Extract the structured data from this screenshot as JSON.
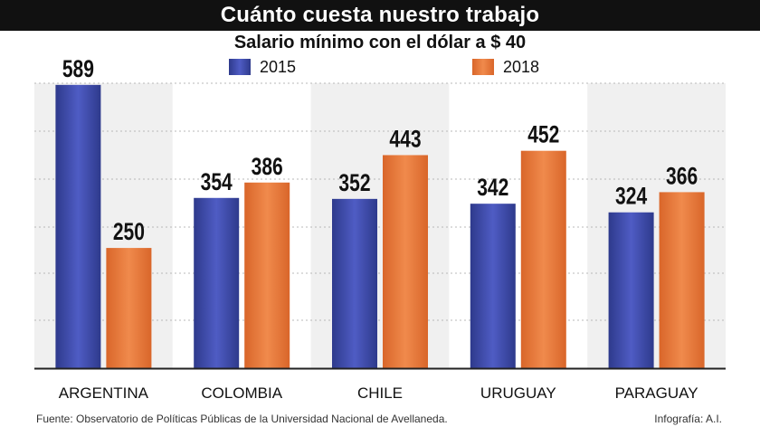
{
  "header": {
    "title": "Cuánto cuesta nuestro trabajo",
    "subtitle": "Salario mínimo con el dólar a $ 40"
  },
  "legend": {
    "items": [
      {
        "label": "2015"
      },
      {
        "label": "2018"
      }
    ]
  },
  "colors": {
    "series_2015": "#2e3a8c",
    "series_2015_light": "#4f5cc4",
    "series_2018": "#d9662a",
    "series_2018_light": "#f08a4c",
    "band_shaded": "#f0f0f0",
    "band_plain": "#ffffff",
    "grid": "#b9b9b9"
  },
  "chart_data": {
    "type": "bar",
    "title": "Cuánto cuesta nuestro trabajo",
    "subtitle": "Salario mínimo con el dólar a $ 40",
    "categories": [
      "ARGENTINA",
      "COLOMBIA",
      "CHILE",
      "URUGUAY",
      "PARAGUAY"
    ],
    "series": [
      {
        "name": "2015",
        "values": [
          589,
          354,
          352,
          342,
          324
        ]
      },
      {
        "name": "2018",
        "values": [
          250,
          386,
          443,
          452,
          366
        ]
      }
    ],
    "xlabel": "",
    "ylabel": "",
    "ylim": [
      0,
      600
    ],
    "grid": true,
    "legend_position": "top"
  },
  "footer": {
    "source": "Fuente: Observatorio de Políticas Públicas de la Universidad Nacional de Avellaneda.",
    "credit": "Infografía: A.I."
  }
}
